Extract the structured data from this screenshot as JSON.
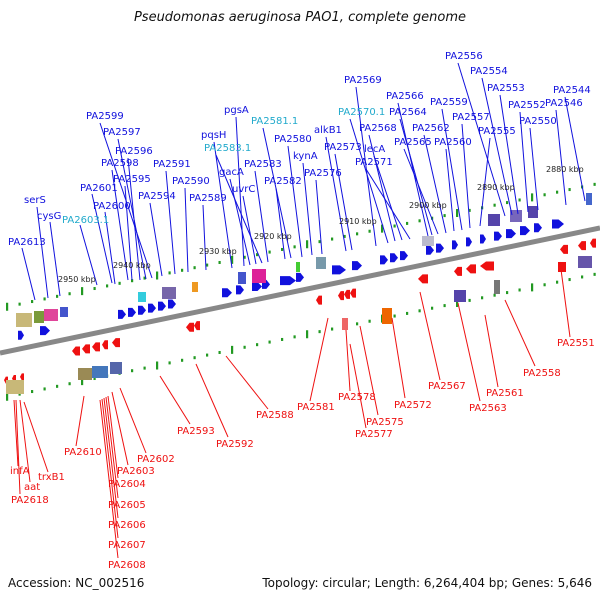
{
  "title": "Pseudomonas aeruginosa PAO1, complete genome",
  "footer": {
    "accession": "Accession: NC_002516",
    "topology": "Topology: circular; Length: 6,264,404 bp; Genes: 5,646"
  },
  "colors": {
    "forward_gene": "#1111dd",
    "reverse_gene": "#ee1111",
    "rna_label": "#22aacc",
    "axis": "#888888",
    "tick": "#229922"
  },
  "ruler_ticks": [
    "2950 kbp",
    "2940 kbp",
    "2930 kbp",
    "2920 kbp",
    "2910 kbp",
    "2900 kbp",
    "2890 kbp",
    "2880 kbp"
  ],
  "top_labels": [
    "PA2613",
    "serS",
    "cysG",
    "PA2603.1",
    "PA2600",
    "PA2601",
    "PA2598",
    "PA2595",
    "PA2596",
    "PA2597",
    "PA2599",
    "PA2594",
    "PA2591",
    "PA2590",
    "PA2589",
    "pqsH",
    "pgsA",
    "gacA",
    "uvrC",
    "PA2583.1",
    "PA2583",
    "PA2581.1",
    "PA2582",
    "PA2580",
    "kynA",
    "PA2576",
    "alkB1",
    "PA2573",
    "PA2569",
    "PA2570.1",
    "PA2568",
    "lecA",
    "PA2571",
    "PA2566",
    "PA2564",
    "PA2565",
    "PA2562",
    "PA2560",
    "PA2559",
    "PA2557",
    "PA2555",
    "PA2556",
    "PA2554",
    "PA2553",
    "PA2552",
    "PA2550",
    "PA2546",
    "PA2544"
  ],
  "bottom_labels": [
    "PA2551",
    "PA2558",
    "PA2561",
    "PA2563",
    "PA2567",
    "PA2572",
    "PA2575",
    "PA2577",
    "PA2578",
    "PA2581",
    "PA2588",
    "PA2592",
    "PA2593",
    "PA2602",
    "PA2603",
    "PA2610",
    "PA2604",
    "PA2605",
    "PA2606",
    "PA2607",
    "PA2608",
    "infA",
    "aat",
    "trxB1",
    "PA2618"
  ]
}
